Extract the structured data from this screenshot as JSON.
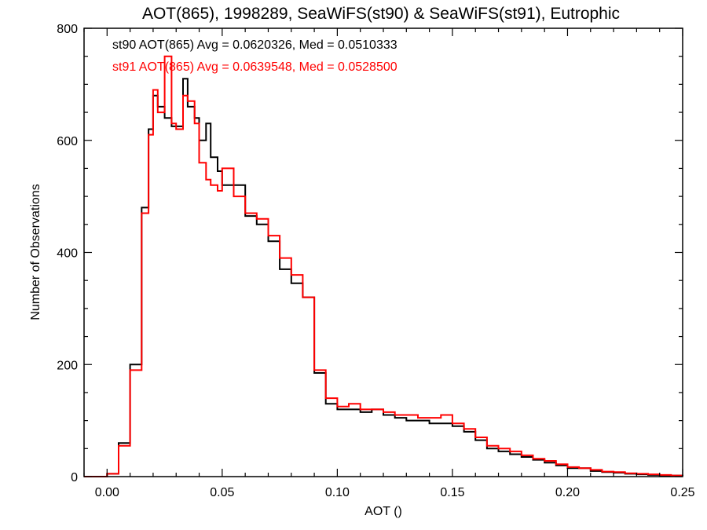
{
  "chart_data": {
    "type": "line",
    "title": "AOT(865), 1998289, SeaWiFS(st90) & SeaWiFS(st91), Eutrophic",
    "xlabel": "AOT ()",
    "ylabel": "Number of Observations",
    "xlim": [
      -0.01,
      0.25
    ],
    "ylim": [
      0,
      800
    ],
    "xticks": [
      "0.00",
      "0.05",
      "0.10",
      "0.15",
      "0.20",
      "0.25"
    ],
    "xtick_values": [
      0.0,
      0.05,
      0.1,
      0.15,
      0.2,
      0.25
    ],
    "yticks": [
      "0",
      "200",
      "400",
      "600",
      "800"
    ],
    "ytick_values": [
      0,
      200,
      400,
      600,
      800
    ],
    "grid": false,
    "series": [
      {
        "name": "st90",
        "color": "#000000",
        "stats_label": "st90 AOT(865) Avg = 0.0620326, Med = 0.0510333",
        "x": [
          -0.01,
          0.0,
          0.005,
          0.01,
          0.015,
          0.018,
          0.02,
          0.022,
          0.025,
          0.028,
          0.03,
          0.033,
          0.035,
          0.038,
          0.04,
          0.043,
          0.045,
          0.048,
          0.05,
          0.055,
          0.06,
          0.065,
          0.07,
          0.075,
          0.08,
          0.085,
          0.09,
          0.095,
          0.1,
          0.105,
          0.11,
          0.115,
          0.12,
          0.125,
          0.13,
          0.135,
          0.14,
          0.145,
          0.15,
          0.155,
          0.16,
          0.165,
          0.17,
          0.175,
          0.18,
          0.185,
          0.19,
          0.195,
          0.2,
          0.205,
          0.21,
          0.215,
          0.22,
          0.225,
          0.23,
          0.235,
          0.24,
          0.245,
          0.25
        ],
        "y": [
          0,
          5,
          60,
          200,
          480,
          620,
          680,
          660,
          640,
          625,
          625,
          710,
          660,
          640,
          600,
          630,
          570,
          545,
          520,
          520,
          465,
          450,
          420,
          370,
          345,
          320,
          185,
          130,
          120,
          120,
          115,
          120,
          110,
          105,
          100,
          100,
          95,
          95,
          90,
          80,
          65,
          50,
          45,
          40,
          35,
          30,
          25,
          20,
          15,
          15,
          10,
          8,
          7,
          5,
          4,
          3,
          2,
          2,
          1
        ]
      },
      {
        "name": "st91",
        "color": "#ff0000",
        "stats_label": "st91 AOT(865) Avg = 0.0639548, Med = 0.0528500",
        "x": [
          -0.01,
          0.0,
          0.005,
          0.01,
          0.015,
          0.018,
          0.02,
          0.022,
          0.025,
          0.028,
          0.03,
          0.033,
          0.035,
          0.038,
          0.04,
          0.043,
          0.045,
          0.048,
          0.05,
          0.055,
          0.06,
          0.065,
          0.07,
          0.075,
          0.08,
          0.085,
          0.09,
          0.095,
          0.1,
          0.105,
          0.11,
          0.115,
          0.12,
          0.125,
          0.13,
          0.135,
          0.14,
          0.145,
          0.15,
          0.155,
          0.16,
          0.165,
          0.17,
          0.175,
          0.18,
          0.185,
          0.19,
          0.195,
          0.2,
          0.205,
          0.21,
          0.215,
          0.22,
          0.225,
          0.23,
          0.235,
          0.24,
          0.245,
          0.25
        ],
        "y": [
          0,
          5,
          55,
          190,
          470,
          610,
          690,
          650,
          750,
          630,
          620,
          680,
          670,
          630,
          560,
          530,
          520,
          510,
          550,
          500,
          470,
          460,
          430,
          390,
          360,
          320,
          190,
          140,
          125,
          130,
          120,
          120,
          115,
          110,
          110,
          105,
          105,
          110,
          95,
          85,
          70,
          55,
          50,
          45,
          38,
          32,
          28,
          22,
          17,
          15,
          12,
          9,
          8,
          6,
          5,
          4,
          3,
          2,
          2
        ]
      }
    ]
  }
}
